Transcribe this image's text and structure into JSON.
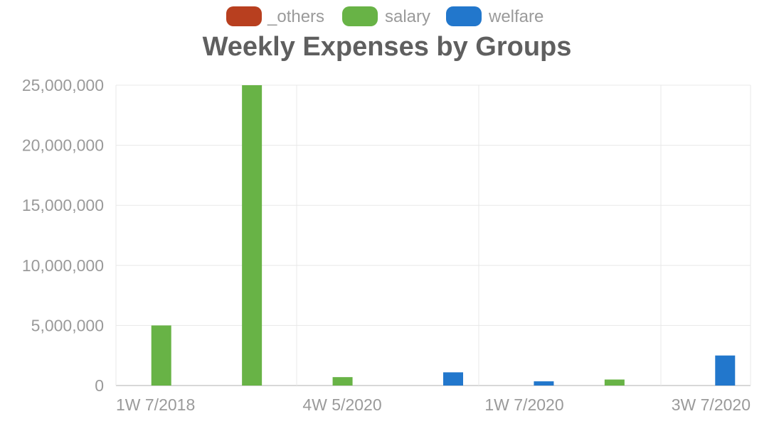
{
  "chart_data": {
    "type": "bar",
    "title": "Weekly Expenses by Groups",
    "xlabel": "",
    "ylabel": "",
    "ylim": [
      0,
      25000000
    ],
    "yticks": [
      0,
      5000000,
      10000000,
      15000000,
      20000000,
      25000000
    ],
    "ytick_labels": [
      "0",
      "5,000,000",
      "10,000,000",
      "15,000,000",
      "20,000,000",
      "25,000,000"
    ],
    "categories": [
      "1W 7/2018",
      "",
      "4W 5/2020",
      "",
      "1W 7/2020",
      "",
      "3W 7/2020"
    ],
    "x_tick_labels": [
      "1W 7/2018",
      "4W 5/2020",
      "1W 7/2020",
      "3W 7/2020"
    ],
    "grid": true,
    "legend_position": "top",
    "series": [
      {
        "name": "_others",
        "color": "#b83f1f",
        "values": [
          0,
          0,
          0,
          0,
          0,
          0,
          0
        ]
      },
      {
        "name": "salary",
        "color": "#68b346",
        "values": [
          5000000,
          25000000,
          700000,
          0,
          0,
          500000,
          0
        ]
      },
      {
        "name": "welfare",
        "color": "#2277cc",
        "values": [
          0,
          0,
          0,
          1100000,
          350000,
          0,
          2500000
        ]
      }
    ]
  }
}
